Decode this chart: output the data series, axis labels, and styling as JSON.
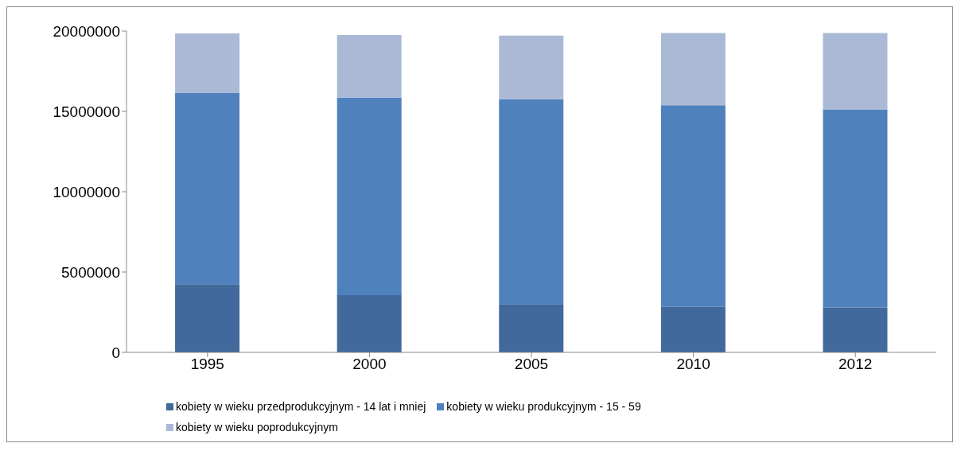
{
  "chart_data": {
    "type": "bar",
    "stacked": true,
    "categories": [
      "1995",
      "2000",
      "2005",
      "2010",
      "2012"
    ],
    "series": [
      {
        "name": "kobiety w wieku przedprodukcyjnym - 14 lat i mniej",
        "color": "#41699b",
        "values": [
          4250000,
          3570000,
          3010000,
          2840000,
          2800000
        ]
      },
      {
        "name": "kobiety w wieku produkcyjnym - 15 - 59",
        "color": "#4f81bd",
        "values": [
          11910000,
          12280000,
          12740000,
          12540000,
          12320000
        ]
      },
      {
        "name": "kobiety w wieku poprodukcyjnym",
        "color": "#aab9d6",
        "values": [
          3690000,
          3900000,
          3960000,
          4500000,
          4760000
        ]
      }
    ],
    "ylim": [
      0,
      20000000
    ],
    "yticks": [
      0,
      5000000,
      10000000,
      15000000,
      20000000
    ],
    "grid": false,
    "legend": "bottom"
  }
}
